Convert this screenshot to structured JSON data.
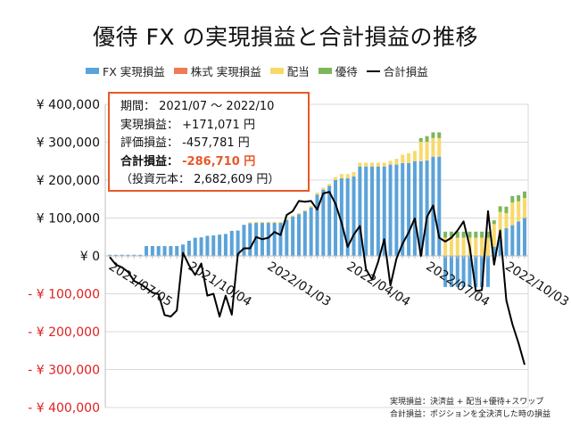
{
  "chart_data": {
    "type": "bar",
    "stacked": true,
    "title": "優待 FX の実現損益と合計損益の推移",
    "ylim": [
      -400000,
      400000
    ],
    "yticks": [
      400000,
      300000,
      200000,
      100000,
      0,
      -100000,
      -200000,
      -300000,
      -400000
    ],
    "ytick_labels": [
      "¥ 400,000",
      "¥ 300,000",
      "¥ 200,000",
      "¥ 100,000",
      "¥ 0",
      "- ¥ 100,000",
      "- ¥ 200,000",
      "- ¥ 300,000",
      "- ¥ 400,000"
    ],
    "negative_label_color": "#e02020",
    "grid": true,
    "legend_position": "top",
    "x_start": "2021/07/05",
    "x_interval": "weekly",
    "xtick_labels": [
      "2021/07/05",
      "2021/10/04",
      "2022/01/03",
      "2022/04/04",
      "2022/07/04",
      "2022/10/03"
    ],
    "xtick_index": [
      0,
      13,
      26,
      39,
      52,
      65
    ],
    "series": [
      {
        "name": "FX 実現損益",
        "kind": "bar",
        "color": "#5ba3d9",
        "values": [
          3000,
          3000,
          3000,
          3000,
          3000,
          3000,
          26000,
          26000,
          26000,
          26000,
          26000,
          26000,
          30000,
          40000,
          48000,
          49000,
          53000,
          54000,
          56000,
          58000,
          66000,
          67000,
          82000,
          86000,
          87000,
          87000,
          87000,
          87000,
          87000,
          95000,
          104000,
          110000,
          118000,
          128000,
          162000,
          175000,
          185000,
          200000,
          205000,
          205000,
          210000,
          236000,
          236000,
          236000,
          236000,
          236000,
          241000,
          241000,
          245000,
          245000,
          250000,
          250000,
          252000,
          262000,
          262000,
          -82000,
          -82000,
          -82000,
          -82000,
          -82000,
          -82000,
          -82000,
          -82000,
          24000,
          44000,
          73000,
          81000,
          91000,
          100000
        ]
      },
      {
        "name": "株式 実現損益",
        "kind": "bar",
        "color": "#f07a55",
        "values": [
          0,
          0,
          0,
          0,
          0,
          0,
          0,
          0,
          0,
          0,
          0,
          0,
          0,
          0,
          0,
          0,
          0,
          0,
          0,
          0,
          0,
          0,
          0,
          0,
          0,
          0,
          0,
          0,
          0,
          0,
          0,
          0,
          0,
          0,
          0,
          0,
          0,
          0,
          0,
          0,
          0,
          0,
          0,
          0,
          0,
          0,
          0,
          0,
          0,
          0,
          0,
          0,
          0,
          0,
          0,
          0,
          0,
          0,
          0,
          0,
          0,
          0,
          0,
          0,
          0,
          0,
          0,
          0,
          0
        ]
      },
      {
        "name": "配当",
        "kind": "bar",
        "color": "#f8d96a",
        "values": [
          0,
          0,
          0,
          0,
          0,
          0,
          0,
          0,
          0,
          0,
          0,
          0,
          0,
          0,
          0,
          0,
          0,
          0,
          0,
          0,
          0,
          0,
          0,
          3000,
          3000,
          3000,
          3000,
          3000,
          3000,
          3000,
          3000,
          3000,
          3000,
          4000,
          5000,
          5000,
          5000,
          8000,
          11000,
          11000,
          11000,
          10000,
          10000,
          10000,
          10000,
          10000,
          10000,
          15000,
          22000,
          26000,
          27000,
          51000,
          49000,
          49000,
          49000,
          48000,
          48000,
          48000,
          48000,
          48000,
          48000,
          48000,
          48000,
          60000,
          72000,
          40000,
          60000,
          53000,
          53000
        ]
      },
      {
        "name": "優待",
        "kind": "bar",
        "color": "#7db65a",
        "values": [
          0,
          0,
          0,
          0,
          0,
          0,
          0,
          0,
          0,
          0,
          0,
          0,
          0,
          0,
          0,
          0,
          0,
          0,
          0,
          0,
          0,
          0,
          0,
          0,
          0,
          0,
          0,
          0,
          0,
          0,
          0,
          0,
          0,
          0,
          0,
          0,
          0,
          0,
          0,
          0,
          0,
          0,
          0,
          0,
          0,
          0,
          0,
          0,
          0,
          0,
          0,
          10000,
          15000,
          15000,
          15000,
          16000,
          16000,
          16000,
          16000,
          16000,
          16000,
          16000,
          16000,
          10000,
          15000,
          17000,
          17000,
          16000,
          17000
        ]
      },
      {
        "name": "合計損益",
        "kind": "line",
        "color": "#000000",
        "values": [
          -3000,
          -23000,
          -30000,
          -42000,
          -66000,
          -74000,
          -85000,
          -97000,
          -101000,
          -156000,
          -160000,
          -144000,
          8000,
          -25000,
          -50000,
          -20000,
          -105000,
          -100000,
          -160000,
          -105000,
          -155000,
          5000,
          20000,
          20000,
          50000,
          44000,
          48000,
          63000,
          55000,
          108000,
          118000,
          145000,
          143000,
          145000,
          122000,
          165000,
          169000,
          138000,
          87000,
          24000,
          56000,
          79000,
          -35000,
          -62000,
          -15000,
          44000,
          -78000,
          -7000,
          32000,
          62000,
          99000,
          0,
          103000,
          133000,
          48000,
          38000,
          48000,
          67000,
          91000,
          24000,
          -93000,
          -90000,
          118000,
          -23000,
          67000,
          -117000,
          -180000,
          -230000,
          -287000
        ]
      }
    ]
  },
  "infobox": {
    "period_label": "期間：",
    "period_value": "2021/07 ～ 2022/10",
    "realized_label": "実現損益：",
    "realized_value": "+171,071 円",
    "unrealized_label": "評価損益：",
    "unrealized_value": "-457,781 円",
    "total_label": "合計損益：",
    "total_value": "-286,710 円",
    "principal_text": "（投資元本： 2,682,609 円）",
    "border_color": "#e8582a"
  },
  "notes": [
    "実現損益：決済益 + 配当+優待+スワップ",
    "合計損益：ポジションを全決済した時の損益"
  ]
}
